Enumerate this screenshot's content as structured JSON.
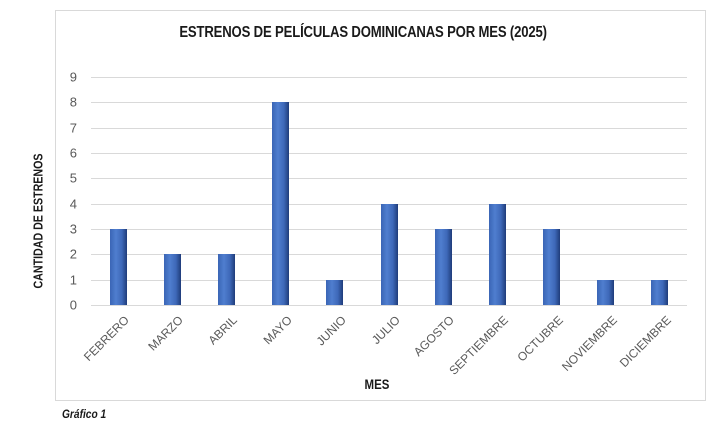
{
  "chart_data": {
    "type": "bar",
    "title": "ESTRENOS DE PELÍCULAS DOMINICANAS POR MES (2025)",
    "xlabel": "MES",
    "ylabel": "CANTIDAD DE ESTRENOS",
    "categories": [
      "FEBRERO",
      "MARZO",
      "ABRIL",
      "MAYO",
      "JUNIO",
      "JULIO",
      "AGOSTO",
      "SEPTIEMBRE",
      "OCTUBRE",
      "NOVIEMBRE",
      "DICIEMBRE"
    ],
    "values": [
      3,
      2,
      2,
      8,
      1,
      4,
      3,
      4,
      3,
      1,
      1
    ],
    "ylim": [
      0,
      9
    ],
    "yticks": [
      "0",
      "1",
      "2",
      "3",
      "4",
      "5",
      "6",
      "7",
      "8",
      "9"
    ],
    "grid": true,
    "legend": null,
    "bar_color": "#4472C4"
  },
  "caption": "Gráfico 1"
}
